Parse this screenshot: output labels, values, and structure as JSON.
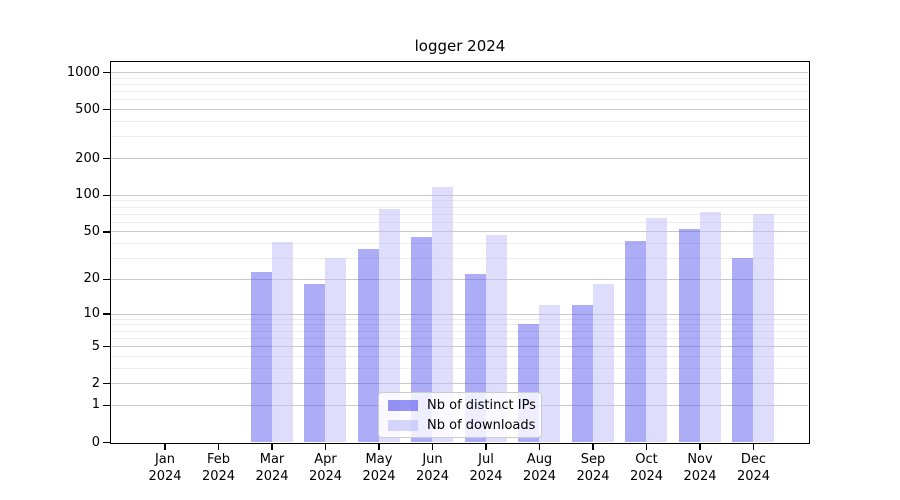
{
  "chart_data": {
    "type": "bar",
    "title": "logger 2024",
    "categories": [
      "Jan",
      "Feb",
      "Mar",
      "Apr",
      "May",
      "Jun",
      "Jul",
      "Aug",
      "Sep",
      "Oct",
      "Nov",
      "Dec"
    ],
    "category_year": "2024",
    "series": [
      {
        "name": "Nb of distinct IPs",
        "color": "#5a5af0",
        "alpha": 0.5,
        "values": [
          0,
          0,
          23,
          18,
          36,
          45,
          22,
          8,
          12,
          42,
          52,
          30
        ]
      },
      {
        "name": "Nb of downloads",
        "color": "#bebefa",
        "alpha": 0.5,
        "values": [
          0,
          0,
          41,
          30,
          77,
          115,
          47,
          12,
          18,
          65,
          72,
          70
        ]
      }
    ],
    "yscale": "symlog-log1p",
    "yticks": [
      0,
      1,
      2,
      5,
      10,
      20,
      50,
      100,
      200,
      500,
      1000
    ],
    "minor_yticks": [
      3,
      4,
      6,
      7,
      8,
      9,
      30,
      40,
      60,
      70,
      80,
      90,
      300,
      400,
      600,
      700,
      800,
      900
    ],
    "ylim": [
      0,
      1250
    ],
    "grid": true,
    "legend_position": "lower-center-inside",
    "colors": {
      "axis": "#000000",
      "text": "#000000",
      "major_grid": "#c9c9c9",
      "minor_grid": "#ececec",
      "background": "#ffffff"
    }
  }
}
